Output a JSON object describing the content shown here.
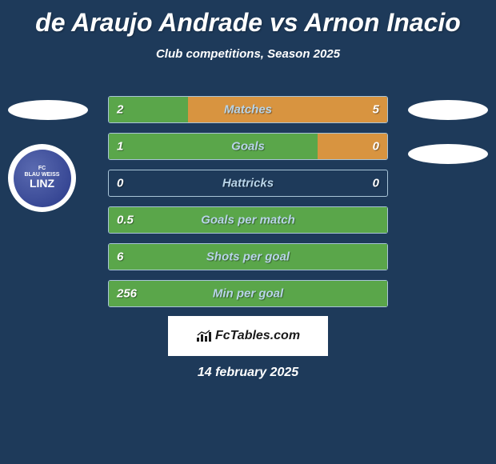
{
  "title": "de Araujo Andrade vs Arnon Inacio",
  "subtitle": "Club competitions, Season 2025",
  "date": "14 february 2025",
  "watermark": "FcTables.com",
  "colors": {
    "background": "#1e3a5a",
    "player1_bar": "#5aa64a",
    "player2_bar": "#d89440",
    "border": "#a8c4d8",
    "label": "#b8d4e8",
    "value": "#ffffff"
  },
  "badge_club": {
    "line1": "FC",
    "line2": "BLAU WEISS",
    "line3": "LINZ"
  },
  "stats": [
    {
      "label": "Matches",
      "left_value": "2",
      "right_value": "5",
      "left_width_pct": 28.5,
      "right_width_pct": 71.5,
      "left_color": "#5aa64a",
      "right_color": "#d89440"
    },
    {
      "label": "Goals",
      "left_value": "1",
      "right_value": "0",
      "left_width_pct": 75,
      "right_width_pct": 25,
      "left_color": "#5aa64a",
      "right_color": "#d89440"
    },
    {
      "label": "Hattricks",
      "left_value": "0",
      "right_value": "0",
      "left_width_pct": 0,
      "right_width_pct": 0,
      "left_color": "#5aa64a",
      "right_color": "#d89440"
    },
    {
      "label": "Goals per match",
      "left_value": "0.5",
      "right_value": "",
      "left_width_pct": 100,
      "right_width_pct": 0,
      "left_color": "#5aa64a",
      "right_color": "#d89440"
    },
    {
      "label": "Shots per goal",
      "left_value": "6",
      "right_value": "",
      "left_width_pct": 100,
      "right_width_pct": 0,
      "left_color": "#5aa64a",
      "right_color": "#d89440"
    },
    {
      "label": "Min per goal",
      "left_value": "256",
      "right_value": "",
      "left_width_pct": 100,
      "right_width_pct": 0,
      "left_color": "#5aa64a",
      "right_color": "#d89440"
    }
  ]
}
